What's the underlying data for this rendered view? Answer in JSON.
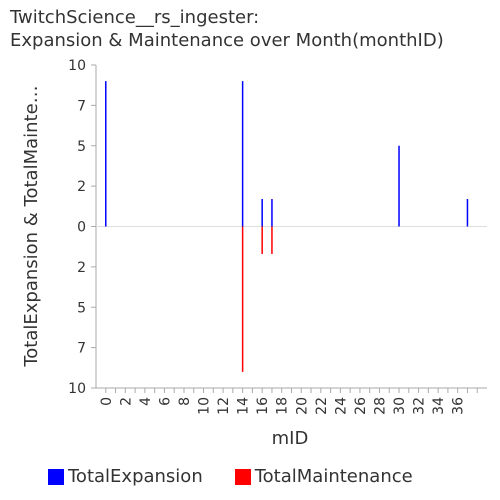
{
  "chart_data": {
    "type": "bar",
    "title": [
      "TwitchScience__rs_ingester:",
      "Expansion & Maintenance over Month(monthID)"
    ],
    "xlabel": "mID",
    "ylabel": "TotalExpansion & TotalMainte…",
    "x_ticks": [
      "0",
      "2",
      "4",
      "6",
      "8",
      "10",
      "12",
      "14",
      "16",
      "18",
      "20",
      "22",
      "24",
      "26",
      "28",
      "30",
      "32",
      "34",
      "36"
    ],
    "y_ticks_top": [
      "10",
      "7",
      "5",
      "2",
      "0"
    ],
    "y_ticks_bottom": [
      "2",
      "5",
      "7",
      "10"
    ],
    "xlim": [
      -1,
      39
    ],
    "ylim": [
      -10,
      10
    ],
    "grid": false,
    "legend_position": "bottom",
    "series": [
      {
        "name": "TotalExpansion",
        "color": "#0000ff",
        "direction": "up",
        "points": [
          {
            "x": 0,
            "y": 9
          },
          {
            "x": 14,
            "y": 9
          },
          {
            "x": 16,
            "y": 1.7
          },
          {
            "x": 17,
            "y": 1.7
          },
          {
            "x": 30,
            "y": 5
          },
          {
            "x": 37,
            "y": 1.7
          }
        ]
      },
      {
        "name": "TotalMaintenance",
        "color": "#ff0000",
        "direction": "down",
        "points": [
          {
            "x": 14,
            "y": 9
          },
          {
            "x": 16,
            "y": 1.7
          },
          {
            "x": 17,
            "y": 1.7
          }
        ]
      }
    ]
  }
}
